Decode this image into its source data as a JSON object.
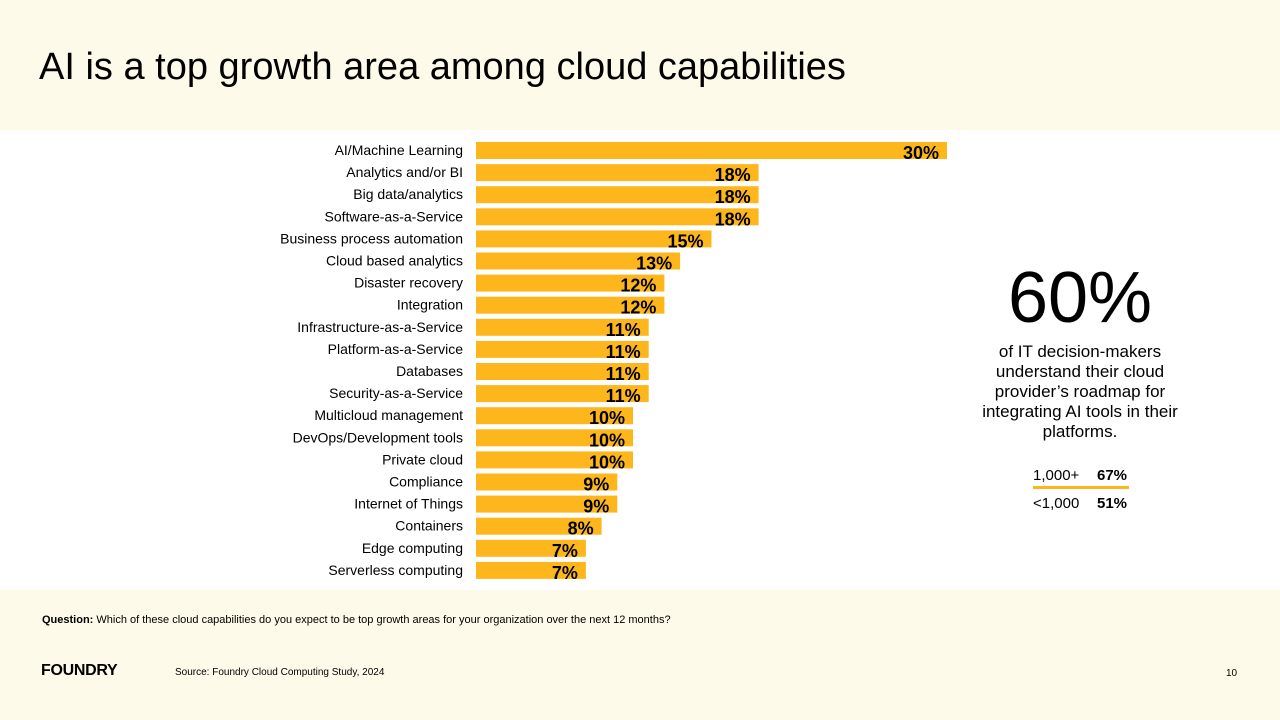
{
  "header": {
    "title": "AI is a top growth area among cloud capabilities"
  },
  "chart_data": {
    "type": "bar",
    "orientation": "horizontal",
    "categories": [
      "AI/Machine Learning",
      "Analytics and/or BI",
      "Big data/analytics",
      "Software-as-a-Service",
      "Business process automation",
      "Cloud based analytics",
      "Disaster recovery",
      "Integration",
      "Infrastructure-as-a-Service",
      "Platform-as-a-Service",
      "Databases",
      "Security-as-a-Service",
      "Multicloud management",
      "DevOps/Development tools",
      "Private cloud",
      "Compliance",
      "Internet of Things",
      "Containers",
      "Edge computing",
      "Serverless computing"
    ],
    "values": [
      30,
      18,
      18,
      18,
      15,
      13,
      12,
      12,
      11,
      11,
      11,
      11,
      10,
      10,
      10,
      9,
      9,
      8,
      7,
      7
    ],
    "unit": "%",
    "bar_color": "#FDB71C",
    "grid": false
  },
  "stat": {
    "value": "60%",
    "description": "of IT decision-makers understand their cloud provider’s roadmap for integrating AI tools in their platforms.",
    "segments": [
      {
        "label": "1,000+",
        "value": "67%"
      },
      {
        "label": "<1,000",
        "value": "51%"
      }
    ]
  },
  "footer": {
    "question_label": "Question:",
    "question_text": " Which of these cloud capabilities do you expect to be top growth areas for your organization over the next 12 months?",
    "logo": "FOUNDRY",
    "source": "Source: Foundry Cloud Computing Study, 2024",
    "page_number": "10"
  }
}
